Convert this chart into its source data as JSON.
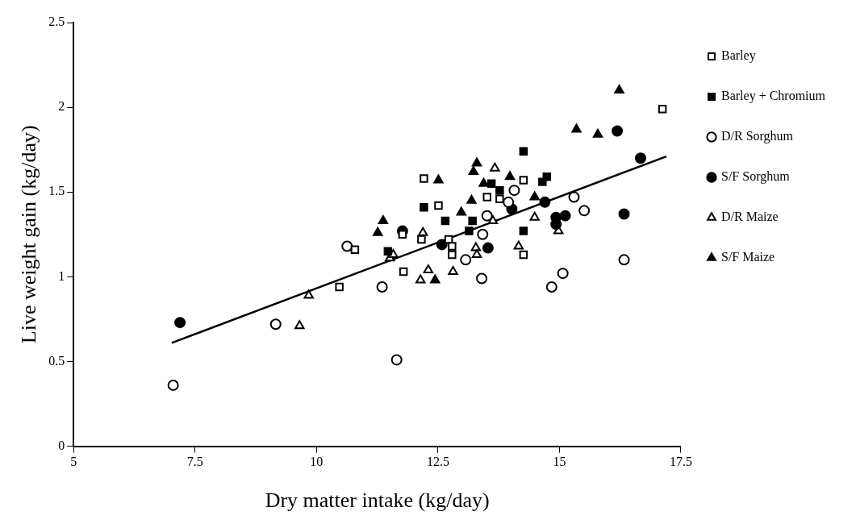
{
  "chart_data": {
    "type": "scatter",
    "xlabel": "Dry matter intake (kg/day)",
    "ylabel": "Live weight gain (kg/day)",
    "xlim": [
      5,
      17.5
    ],
    "xticks": [
      5,
      7.5,
      10,
      12.5,
      15,
      17.5
    ],
    "ylim": [
      0,
      2.5
    ],
    "yticks": [
      0,
      0.5,
      1,
      1.5,
      2,
      2.5
    ],
    "grid": false,
    "legend": "right",
    "series": [
      {
        "name": "Barley",
        "marker": "square",
        "color": "#ffffff",
        "x": [
          10.47,
          10.79,
          11.77,
          11.79,
          12.21,
          12.16,
          12.51,
          12.72,
          12.79,
          12.79,
          13.51,
          13.77,
          14.26,
          14.26,
          17.12
        ],
        "values": [
          0.94,
          1.16,
          1.25,
          1.03,
          1.58,
          1.22,
          1.42,
          1.22,
          1.18,
          1.13,
          1.47,
          1.46,
          1.57,
          1.13,
          1.99
        ]
      },
      {
        "name": "Barley + Chromium",
        "marker": "square",
        "color": "#000000",
        "x": [
          11.47,
          12.21,
          12.65,
          13.14,
          13.21,
          13.6,
          13.77,
          14.26,
          14.26,
          14.65,
          14.74
        ],
        "values": [
          1.15,
          1.41,
          1.33,
          1.27,
          1.33,
          1.55,
          1.51,
          1.74,
          1.27,
          1.56,
          1.59
        ]
      },
      {
        "name": "D/R Sorghum",
        "marker": "circle",
        "color": "#ffffff",
        "x": [
          7.05,
          9.16,
          10.63,
          11.35,
          11.65,
          13.07,
          13.4,
          13.42,
          13.51,
          13.95,
          14.07,
          14.84,
          15.07,
          15.3,
          15.51,
          16.33
        ],
        "values": [
          0.36,
          0.72,
          1.18,
          0.94,
          0.51,
          1.1,
          0.99,
          1.25,
          1.36,
          1.44,
          1.51,
          0.94,
          1.02,
          1.47,
          1.39,
          1.1
        ]
      },
      {
        "name": "S/F Sorghum",
        "marker": "circle",
        "color": "#000000",
        "x": [
          7.19,
          11.77,
          12.58,
          13.53,
          14.02,
          14.7,
          14.93,
          14.93,
          15.12,
          16.19,
          16.33,
          16.67
        ],
        "values": [
          0.73,
          1.27,
          1.19,
          1.17,
          1.4,
          1.44,
          1.35,
          1.31,
          1.36,
          1.86,
          1.37,
          1.7
        ]
      },
      {
        "name": "D/R Maize",
        "marker": "triangle",
        "color": "#ffffff",
        "x": [
          9.65,
          9.84,
          11.51,
          11.58,
          12.14,
          12.19,
          12.3,
          12.81,
          13.28,
          13.3,
          13.63,
          13.67,
          14.16,
          14.49,
          14.98
        ],
        "values": [
          0.71,
          0.89,
          1.11,
          1.13,
          0.98,
          1.26,
          1.04,
          1.03,
          1.17,
          1.13,
          1.33,
          1.64,
          1.18,
          1.35,
          1.27
        ]
      },
      {
        "name": "S/F Maize",
        "marker": "triangle",
        "color": "#000000",
        "x": [
          11.26,
          11.37,
          12.44,
          12.51,
          12.98,
          13.19,
          13.23,
          13.3,
          13.44,
          13.98,
          14.49,
          15.35,
          15.79,
          16.23
        ],
        "values": [
          1.26,
          1.33,
          0.98,
          1.57,
          1.38,
          1.45,
          1.62,
          1.67,
          1.55,
          1.59,
          1.47,
          1.87,
          1.84,
          2.1
        ]
      },
      {
        "type": "line",
        "marker": "none",
        "color": "#000000",
        "x": [
          7.02,
          17.2
        ],
        "values": [
          0.61,
          1.71
        ]
      }
    ]
  }
}
